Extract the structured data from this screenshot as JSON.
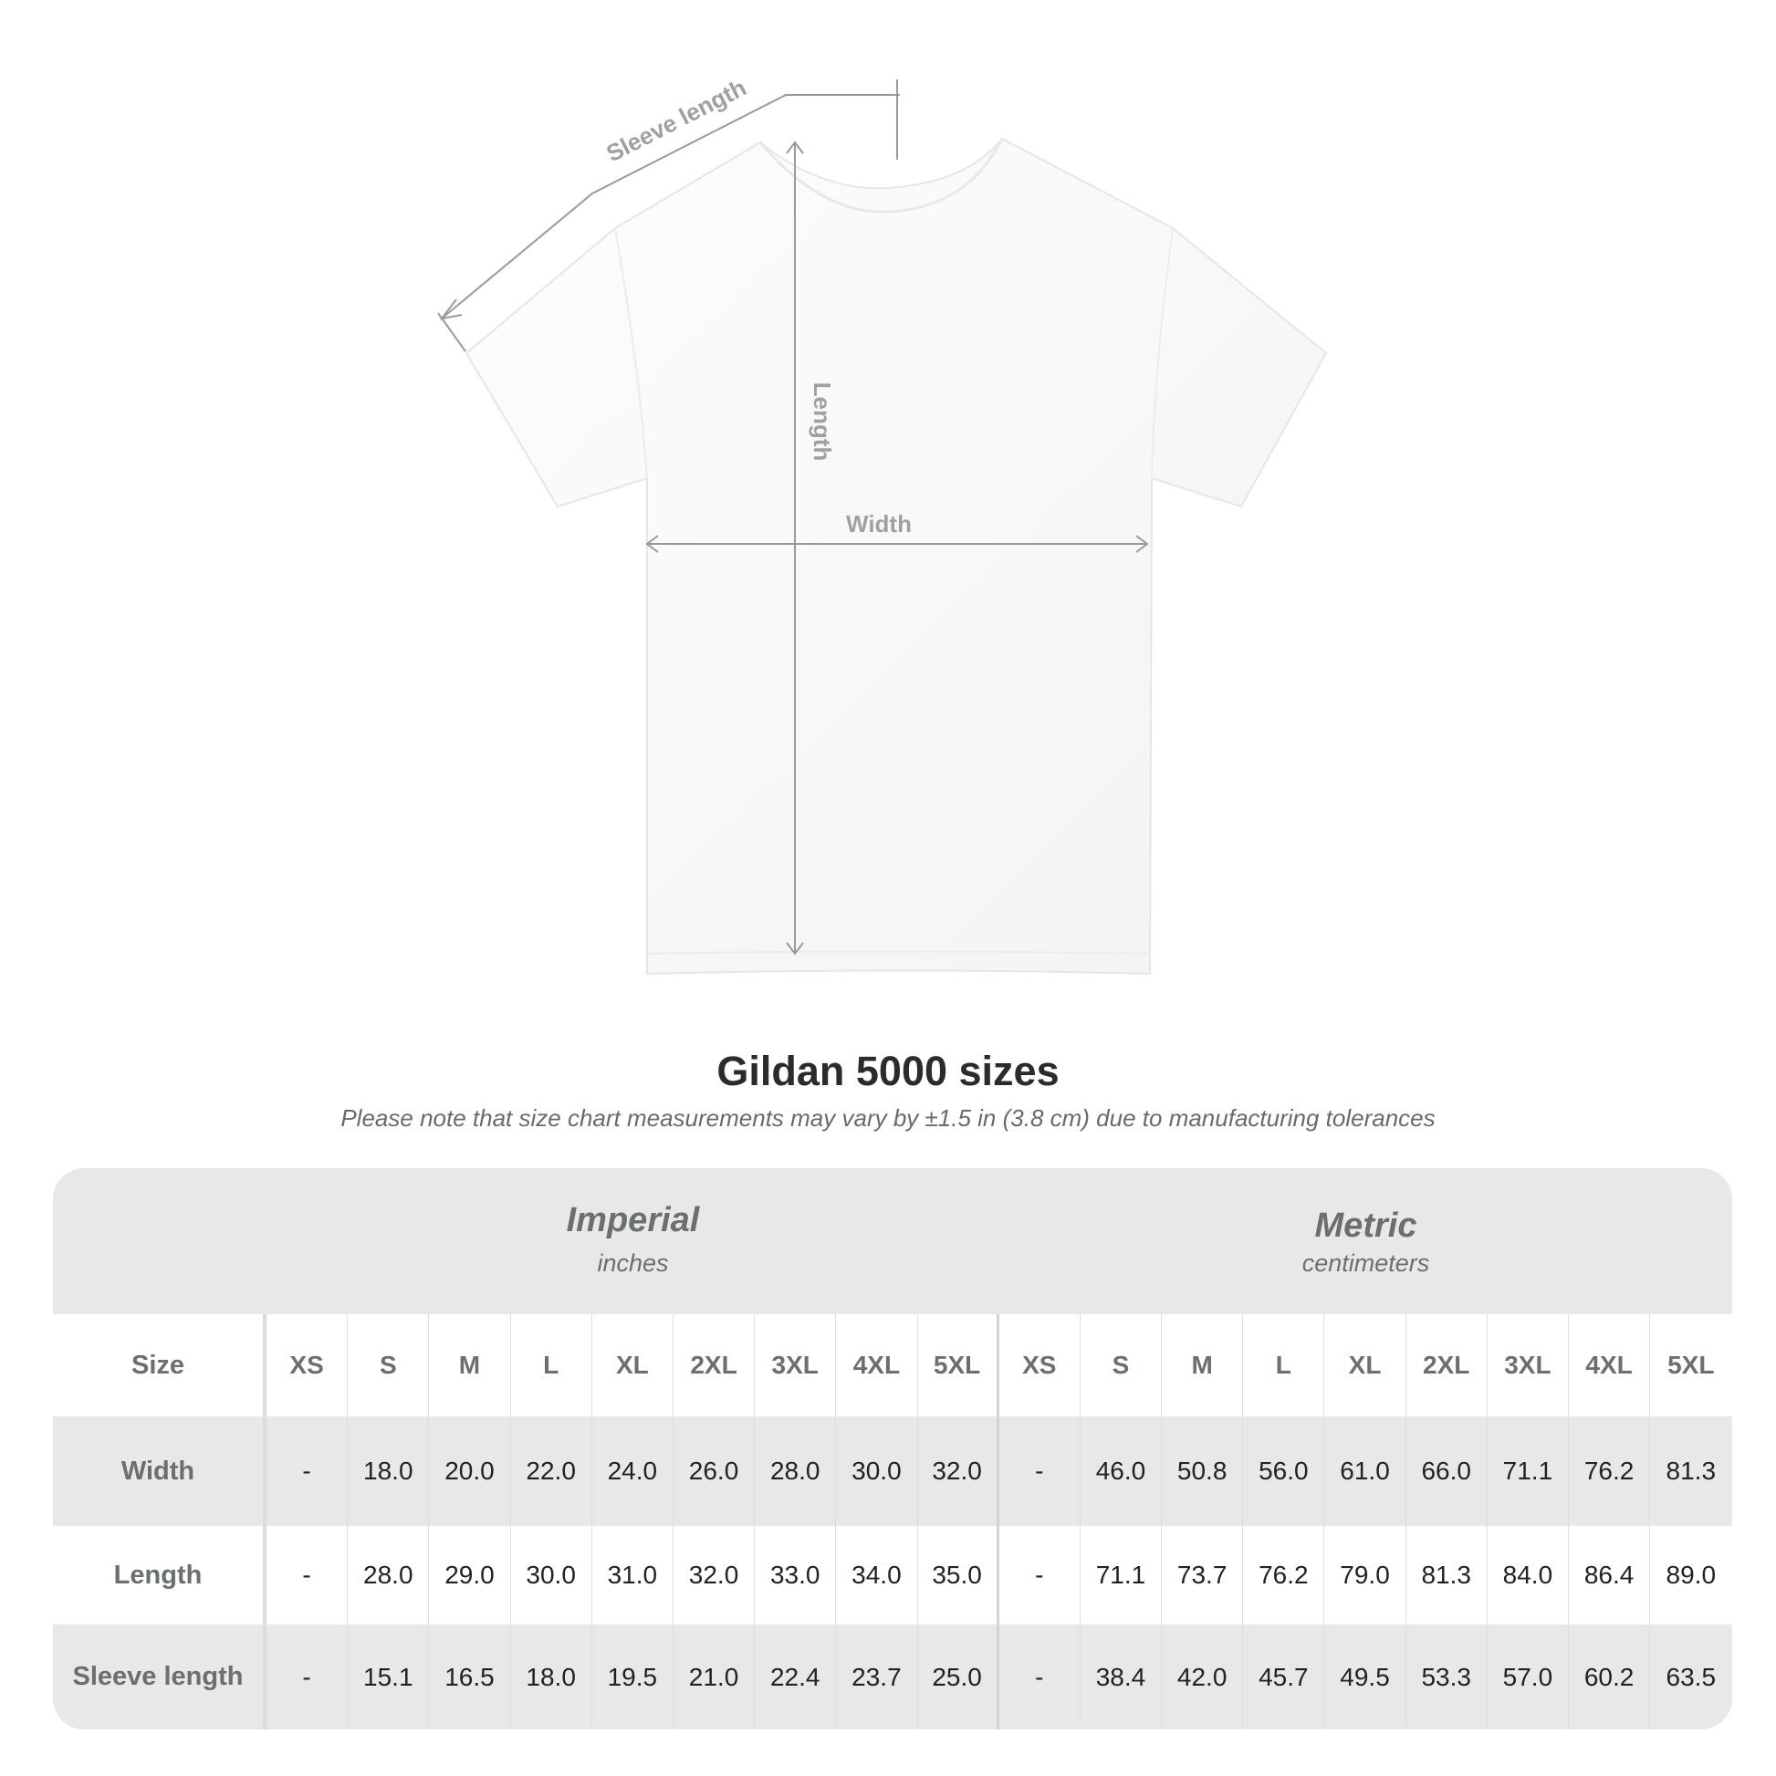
{
  "diagram": {
    "labels": {
      "sleeve": "Sleeve length",
      "length": "Length",
      "width": "Width"
    },
    "colors": {
      "shirt": "#ffffff",
      "measure_line": "#9a9a9a",
      "label": "#a0a0a0"
    }
  },
  "title": "Gildan 5000 sizes",
  "subtitle": "Please note that size chart measurements may vary by ±1.5 in (3.8 cm) due to manufacturing tolerances",
  "table": {
    "imperial": {
      "name": "Imperial",
      "unit": "inches"
    },
    "metric": {
      "name": "Metric",
      "unit": "centimeters"
    },
    "size_label": "Size",
    "sizes": [
      "XS",
      "S",
      "M",
      "L",
      "XL",
      "2XL",
      "3XL",
      "4XL",
      "5XL"
    ],
    "rows": [
      {
        "label": "Width",
        "imperial": [
          "-",
          "18.0",
          "20.0",
          "22.0",
          "24.0",
          "26.0",
          "28.0",
          "30.0",
          "32.0"
        ],
        "metric": [
          "-",
          "46.0",
          "50.8",
          "56.0",
          "61.0",
          "66.0",
          "71.1",
          "76.2",
          "81.3"
        ]
      },
      {
        "label": "Length",
        "imperial": [
          "-",
          "28.0",
          "29.0",
          "30.0",
          "31.0",
          "32.0",
          "33.0",
          "34.0",
          "35.0"
        ],
        "metric": [
          "-",
          "71.1",
          "73.7",
          "76.2",
          "79.0",
          "81.3",
          "84.0",
          "86.4",
          "89.0"
        ]
      },
      {
        "label": "Sleeve length",
        "imperial": [
          "-",
          "15.1",
          "16.5",
          "18.0",
          "19.5",
          "21.0",
          "22.4",
          "23.7",
          "25.0"
        ],
        "metric": [
          "-",
          "38.4",
          "42.0",
          "45.7",
          "49.5",
          "53.3",
          "57.0",
          "60.2",
          "63.5"
        ]
      }
    ]
  }
}
